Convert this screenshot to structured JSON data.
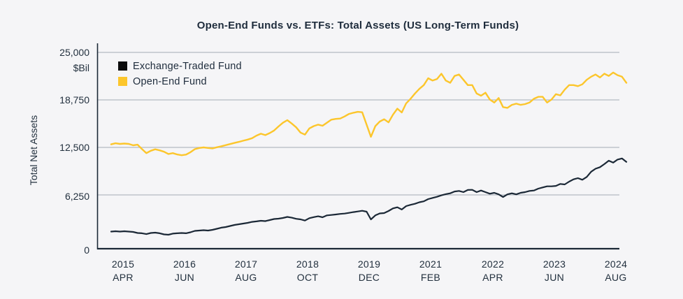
{
  "title": "Open-End Funds vs. ETFs: Total Assets (US Long-Term Funds)",
  "y_axis": {
    "label": "Total Net Assets",
    "unit": "$Bil",
    "tick_labels": [
      "25,000",
      "18,750",
      "12,500",
      "6,250",
      "0"
    ]
  },
  "x_axis": {
    "ticks": [
      {
        "year": "2015",
        "month": "APR"
      },
      {
        "year": "2016",
        "month": "JUN"
      },
      {
        "year": "2017",
        "month": "AUG"
      },
      {
        "year": "2018",
        "month": "OCT"
      },
      {
        "year": "2019",
        "month": "DEC"
      },
      {
        "year": "2021",
        "month": "FEB"
      },
      {
        "year": "2022",
        "month": "APR"
      },
      {
        "year": "2023",
        "month": "JUN"
      },
      {
        "year": "2024",
        "month": "AUG"
      }
    ]
  },
  "legend": [
    {
      "label": "Exchange-Traded Fund",
      "color": "#0c0c0c"
    },
    {
      "label": "Open-End Fund",
      "color": "#fcc62c"
    }
  ],
  "colors": {
    "background": "#f5f5f7",
    "text": "#22303e",
    "gridline": "#b3bbc2",
    "axis": "#1b2836",
    "etf_line": "#1b2836",
    "oef_line": "#fcc62c"
  },
  "chart_data": {
    "type": "line",
    "title": "Open-End Funds vs. ETFs: Total Assets (US Long-Term Funds)",
    "ylabel": "Total Net Assets",
    "y_unit": "$Bil",
    "ylim": [
      0,
      25000
    ],
    "y_ticks": [
      25000,
      18750,
      12500,
      6250,
      0
    ],
    "x_unit": "month",
    "x_span": "Jan 2015 - Oct 2024",
    "grid": "horizontal-only",
    "legend_position": "top-left-inside",
    "series": [
      {
        "name": "Exchange-Traded Fund",
        "values": [
          1990,
          2030,
          1990,
          2030,
          1990,
          1950,
          1830,
          1790,
          1700,
          1830,
          1870,
          1790,
          1660,
          1620,
          1750,
          1790,
          1830,
          1790,
          1910,
          2070,
          2110,
          2150,
          2110,
          2190,
          2310,
          2440,
          2520,
          2640,
          2760,
          2840,
          2920,
          3000,
          3120,
          3170,
          3250,
          3210,
          3330,
          3450,
          3490,
          3570,
          3690,
          3600,
          3470,
          3410,
          3270,
          3550,
          3670,
          3770,
          3650,
          3870,
          3920,
          3980,
          4040,
          4080,
          4160,
          4250,
          4330,
          4410,
          4300,
          3400,
          3870,
          4100,
          4140,
          4380,
          4680,
          4810,
          4550,
          4950,
          5100,
          5220,
          5400,
          5500,
          5760,
          5900,
          6030,
          6200,
          6350,
          6460,
          6700,
          6770,
          6620,
          6900,
          6920,
          6620,
          6830,
          6620,
          6410,
          6530,
          6320,
          6010,
          6320,
          6460,
          6320,
          6530,
          6620,
          6770,
          6830,
          7080,
          7230,
          7380,
          7380,
          7440,
          7690,
          7630,
          8000,
          8300,
          8460,
          8240,
          8610,
          9300,
          9700,
          9900,
          10300,
          10750,
          10500,
          10900,
          11050,
          10600
        ]
      },
      {
        "name": "Open-End Fund",
        "values": [
          12900,
          13040,
          12960,
          13010,
          12960,
          12780,
          12860,
          12280,
          11750,
          12060,
          12250,
          12110,
          11930,
          11640,
          11750,
          11570,
          11470,
          11550,
          11870,
          12270,
          12430,
          12500,
          12430,
          12370,
          12520,
          12650,
          12790,
          12940,
          13090,
          13230,
          13380,
          13530,
          13710,
          14050,
          14300,
          14120,
          14380,
          14720,
          15260,
          15740,
          16080,
          15640,
          15150,
          14450,
          14180,
          15000,
          15300,
          15500,
          15350,
          15750,
          16150,
          16250,
          16300,
          16570,
          16900,
          17060,
          17180,
          17120,
          15500,
          13900,
          15300,
          15900,
          16200,
          15800,
          16800,
          17600,
          17100,
          18300,
          18900,
          19600,
          20200,
          20700,
          21600,
          21300,
          21500,
          22200,
          21300,
          21000,
          21900,
          22100,
          21400,
          20700,
          20700,
          19600,
          19300,
          19700,
          18800,
          18400,
          19000,
          17800,
          17700,
          18100,
          18250,
          18100,
          18200,
          18400,
          18900,
          19150,
          19150,
          18400,
          18800,
          19500,
          19350,
          20100,
          20700,
          20700,
          20560,
          20800,
          21400,
          21800,
          22100,
          21700,
          22200,
          21900,
          22350,
          22000,
          21800,
          21000
        ]
      }
    ]
  }
}
